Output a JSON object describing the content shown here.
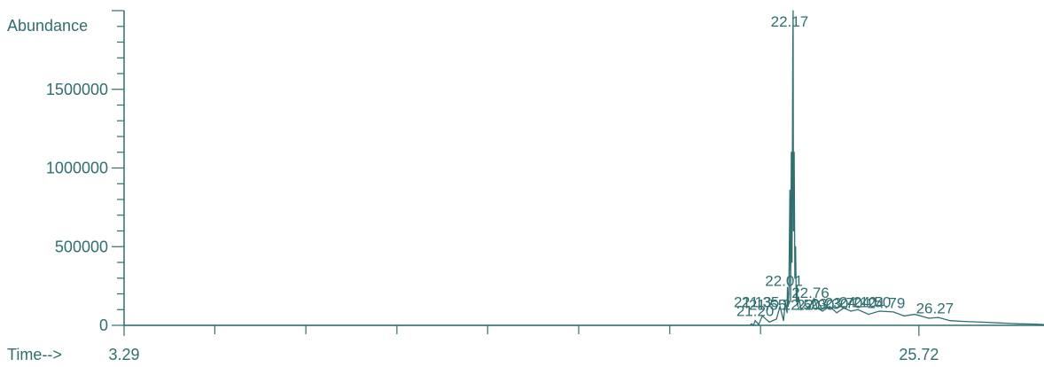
{
  "chart_data": {
    "type": "line",
    "ylabel": "Abundance",
    "xlabel": "Time-->",
    "grid": false,
    "color": "#2f6f6f",
    "xlim": [
      3.29,
      29.25
    ],
    "ylim": [
      0,
      2000000
    ],
    "x_tick_labels": [
      {
        "x": 3.29,
        "label": "3.29"
      },
      {
        "x": 25.72,
        "label": "25.72"
      }
    ],
    "x_minor_ticks": [
      5.85,
      8.42,
      10.99,
      13.55,
      16.12,
      18.69,
      21.25
    ],
    "y_ticks": [
      0,
      500000,
      1000000,
      1500000
    ],
    "y_tick_labels": [
      "0",
      "500000",
      "1000000",
      "1500000"
    ],
    "series": [
      {
        "x": [
          3.29,
          20.95,
          21.0,
          21.05,
          21.1,
          21.2,
          21.3,
          21.5,
          21.7,
          21.8,
          21.9,
          21.95,
          22.0,
          22.01,
          22.03,
          22.05,
          22.08,
          22.1,
          22.12,
          22.14,
          22.16,
          22.17,
          22.18,
          22.2,
          22.22,
          22.24,
          22.26,
          22.28,
          22.3,
          22.32,
          22.35,
          22.4,
          22.5,
          22.6,
          22.7,
          22.76,
          22.85,
          23.0,
          23.2,
          23.4,
          23.6,
          23.8,
          24.0,
          24.3,
          24.6,
          25.0,
          25.3,
          25.6,
          26.0,
          26.27,
          26.6,
          27.0,
          27.5,
          28.0,
          28.5,
          29.0,
          29.25
        ],
        "y": [
          0,
          0,
          10000,
          0,
          30000,
          5000,
          60000,
          20000,
          40000,
          120000,
          30000,
          150000,
          80000,
          240000,
          120000,
          200000,
          860000,
          150000,
          1100000,
          400000,
          1700000,
          2000000,
          600000,
          1100000,
          300000,
          500000,
          150000,
          250000,
          120000,
          180000,
          150000,
          100000,
          130000,
          110000,
          140000,
          170000,
          110000,
          90000,
          120000,
          80000,
          110000,
          90000,
          100000,
          70000,
          90000,
          85000,
          60000,
          70000,
          45000,
          50000,
          30000,
          25000,
          20000,
          15000,
          10000,
          8000,
          5000
        ]
      }
    ],
    "peak_labels": [
      {
        "x": 22.17,
        "y": 1900000,
        "text": "22.17"
      },
      {
        "x": 22.01,
        "y": 250000,
        "text": "22.01"
      },
      {
        "x": 22.76,
        "y": 175000,
        "text": "22.76"
      },
      {
        "x": 21.13,
        "y": 115000,
        "text": "21.13"
      },
      {
        "x": 21.35,
        "y": 115000,
        "text": "21.35"
      },
      {
        "x": 21.55,
        "y": 100000,
        "text": "21.55"
      },
      {
        "x": 21.2,
        "y": 60000,
        "text": "21.20"
      },
      {
        "x": 22.5,
        "y": 100000,
        "text": "22.50"
      },
      {
        "x": 22.9,
        "y": 100000,
        "text": "22.90"
      },
      {
        "x": 23.3,
        "y": 105000,
        "text": "23.30"
      },
      {
        "x": 23.7,
        "y": 110000,
        "text": "23.70"
      },
      {
        "x": 24.1,
        "y": 115000,
        "text": "24.10"
      },
      {
        "x": 24.5,
        "y": 115000,
        "text": "24.50"
      },
      {
        "x": 24.9,
        "y": 110000,
        "text": "24.79"
      },
      {
        "x": 26.27,
        "y": 75000,
        "text": "26.27"
      }
    ]
  }
}
